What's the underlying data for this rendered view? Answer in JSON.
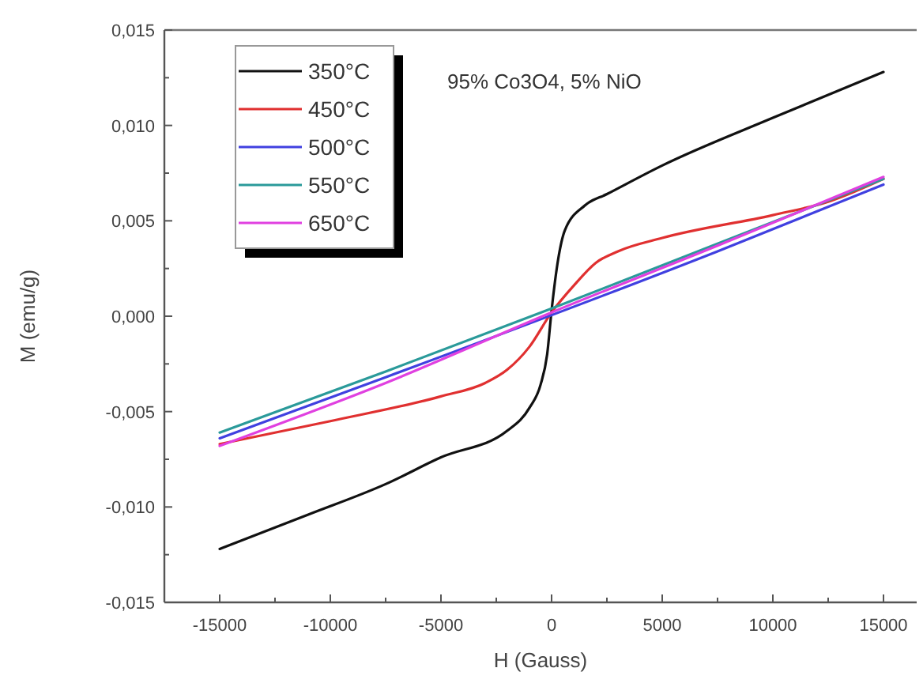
{
  "chart_data": {
    "type": "line",
    "xlabel": "H (Gauss)",
    "ylabel": "M (emu/g)",
    "annotations": [
      "95% Co3O4, 5% NiO"
    ],
    "xlim": [
      -17500,
      16500
    ],
    "ylim": [
      -0.015,
      0.015
    ],
    "xticks": [
      -15000,
      {
        "value": -12500,
        "label": null
      },
      -10000,
      {
        "value": -7500,
        "label": null
      },
      -5000,
      {
        "value": -2500,
        "label": null
      },
      0,
      {
        "value": 2500,
        "label": null
      },
      5000,
      {
        "value": 7500,
        "label": null
      },
      10000,
      {
        "value": 12500,
        "label": null
      },
      15000
    ],
    "yticks": [
      {
        "value": -0.015,
        "label": "-0,015"
      },
      {
        "value": -0.0125,
        "label": null
      },
      {
        "value": -0.01,
        "label": "-0,010"
      },
      {
        "value": -0.0075,
        "label": null
      },
      {
        "value": -0.005,
        "label": "-0,005"
      },
      {
        "value": -0.0025,
        "label": null
      },
      {
        "value": 0,
        "label": "0,000"
      },
      {
        "value": 0.0025,
        "label": null
      },
      {
        "value": 0.005,
        "label": "0,005"
      },
      {
        "value": 0.0075,
        "label": null
      },
      {
        "value": 0.01,
        "label": "0,010"
      },
      {
        "value": 0.0125,
        "label": null
      },
      {
        "value": 0.015,
        "label": "0,015"
      }
    ],
    "legend": "top left",
    "grid": false,
    "marker": "none",
    "line_style": "solid",
    "series": [
      {
        "name": "350°C",
        "color": "#111111",
        "x": [
          -15000,
          -11000,
          -7500,
          -5000,
          -2000,
          -1000,
          -500,
          -200,
          0,
          300,
          600,
          1500,
          2500,
          5000,
          10000,
          15000
        ],
        "values": [
          -0.0122,
          -0.0104,
          -0.0088,
          -0.0074,
          -0.006,
          -0.0048,
          -0.0036,
          -0.002,
          0.0003,
          0.003,
          0.0045,
          0.0058,
          0.0064,
          0.0079,
          0.0104,
          0.0128
        ]
      },
      {
        "name": "450°C",
        "color": "#e03030",
        "x": [
          -15000,
          -10000,
          -5000,
          -3000,
          -2000,
          -1000,
          0,
          1000,
          2000,
          3000,
          5000,
          10000,
          12500,
          15000
        ],
        "values": [
          -0.0067,
          -0.0055,
          -0.0042,
          -0.0035,
          -0.0028,
          -0.0016,
          0.0002,
          0.0016,
          0.0028,
          0.0034,
          0.0041,
          0.0053,
          0.006,
          0.0072
        ]
      },
      {
        "name": "500°C",
        "color": "#4040e0",
        "x": [
          -15000,
          -7500,
          7500,
          15000
        ],
        "values": [
          -0.0064,
          -0.0032,
          0.0034,
          0.0069
        ]
      },
      {
        "name": "550°C",
        "color": "#2a9a9a",
        "x": [
          -15000,
          -7500,
          0,
          7500,
          15000
        ],
        "values": [
          -0.0061,
          -0.0029,
          0.0004,
          0.0038,
          0.0072
        ]
      },
      {
        "name": "650°C",
        "color": "#e040e0",
        "x": [
          -15000,
          -7500,
          0,
          7500,
          15000
        ],
        "values": [
          -0.0068,
          -0.0035,
          0.0002,
          0.0037,
          0.0073
        ]
      }
    ]
  }
}
